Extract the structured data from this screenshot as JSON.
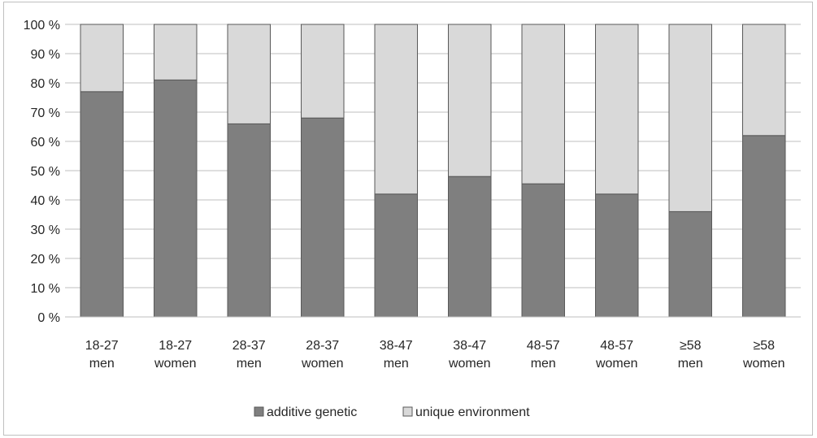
{
  "chart_data": {
    "type": "bar",
    "stacked": true,
    "percent": true,
    "categories": [
      [
        "18-27",
        "men"
      ],
      [
        "18-27",
        "women"
      ],
      [
        "28-37",
        "men"
      ],
      [
        "28-37",
        "women"
      ],
      [
        "38-47",
        "men"
      ],
      [
        "38-47",
        "women"
      ],
      [
        "48-57",
        "men"
      ],
      [
        "48-57",
        "women"
      ],
      [
        "≥58",
        "men"
      ],
      [
        "≥58",
        "women"
      ]
    ],
    "series": [
      {
        "name": "additive genetic",
        "color": "#7f7f7f",
        "values": [
          77,
          81,
          66,
          68,
          42,
          48,
          45.5,
          42,
          36,
          62
        ]
      },
      {
        "name": "unique environment",
        "color": "#d9d9d9",
        "values": [
          23,
          19,
          34,
          32,
          58,
          52,
          54.5,
          58,
          64,
          38
        ]
      }
    ],
    "ylim": [
      0,
      100
    ],
    "yticks": [
      "0 %",
      "10 %",
      "20 %",
      "30 %",
      "40 %",
      "50 %",
      "60 %",
      "70 %",
      "80 %",
      "90 %",
      "100 %"
    ],
    "grid": true,
    "legend_position": "bottom",
    "title": "",
    "xlabel": "",
    "ylabel": ""
  }
}
